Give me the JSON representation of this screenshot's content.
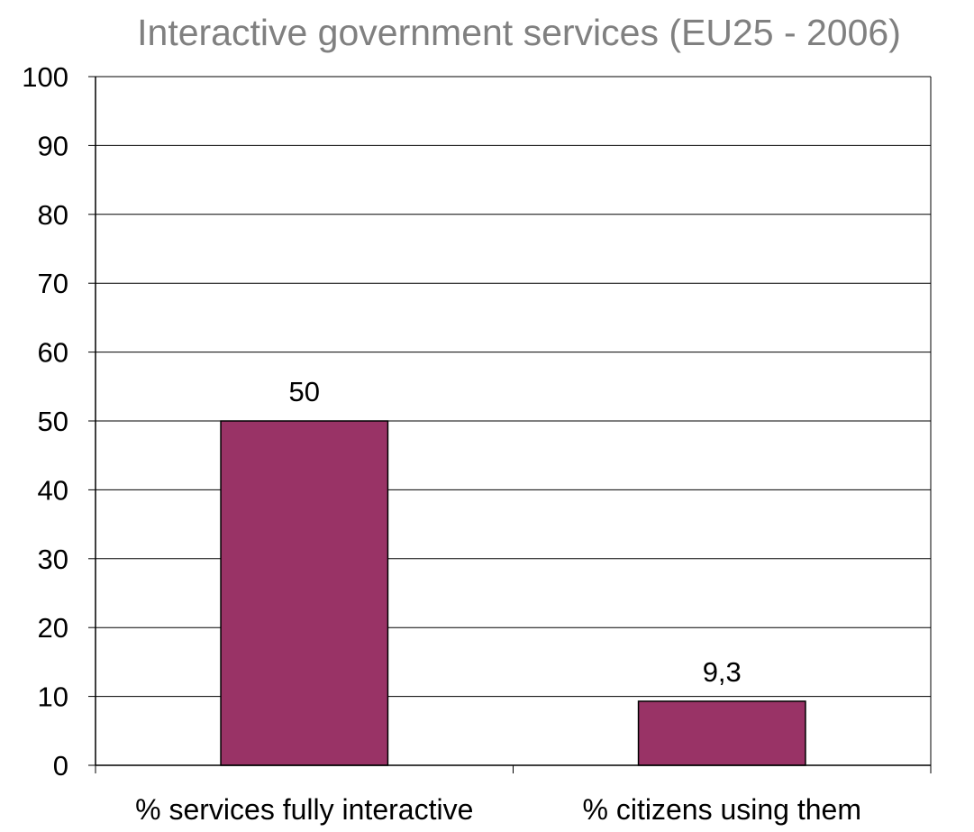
{
  "chart_data": {
    "type": "bar",
    "title": "Interactive government services (EU25 - 2006)",
    "categories": [
      "% services fully interactive",
      "% citizens using them"
    ],
    "values": [
      50,
      9.3
    ],
    "data_labels": [
      "50",
      "9,3"
    ],
    "yticks": [
      "0",
      "10",
      "20",
      "30",
      "40",
      "50",
      "60",
      "70",
      "80",
      "90",
      "100"
    ],
    "ylim": [
      0,
      100
    ],
    "xlabel": "",
    "ylabel": "",
    "grid": true,
    "legend": "none",
    "bar_color": "#993366",
    "bar_edge_color": "#000000",
    "title_color": "#808080"
  }
}
